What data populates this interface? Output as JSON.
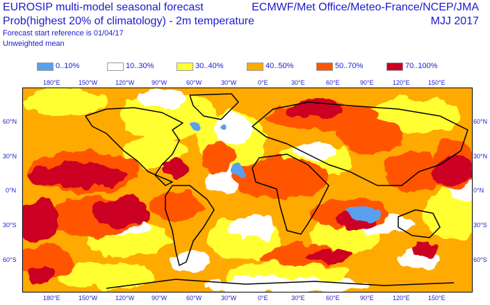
{
  "header": {
    "title": "EUROSIP multi-model seasonal forecast",
    "subtitle": "Prob(highest 20% of climatology) - 2m temperature",
    "forecast_ref": "Forecast start reference is 01/04/17",
    "weighting": "Unweighted mean",
    "organizations": "ECMWF/Met Office/Meteo-France/NCEP/JMA",
    "period": "MJJ 2017"
  },
  "legend": [
    {
      "label": "0..10%",
      "color": "#5aa0f0"
    },
    {
      "label": "10..30%",
      "color": "#ffffff"
    },
    {
      "label": "30..40%",
      "color": "#ffff33"
    },
    {
      "label": "40..50%",
      "color": "#ffaa00"
    },
    {
      "label": "50..70%",
      "color": "#ff5500"
    },
    {
      "label": "70..100%",
      "color": "#cc0022"
    }
  ],
  "axes": {
    "lon_ticks": [
      "180°E",
      "150°W",
      "120°W",
      "90°W",
      "60°W",
      "30°W",
      "0°E",
      "30°E",
      "60°E",
      "90°E",
      "120°E",
      "150°E"
    ],
    "lat_ticks": [
      "60°N",
      "30°N",
      "0°N",
      "30°S",
      "60°S"
    ]
  }
}
